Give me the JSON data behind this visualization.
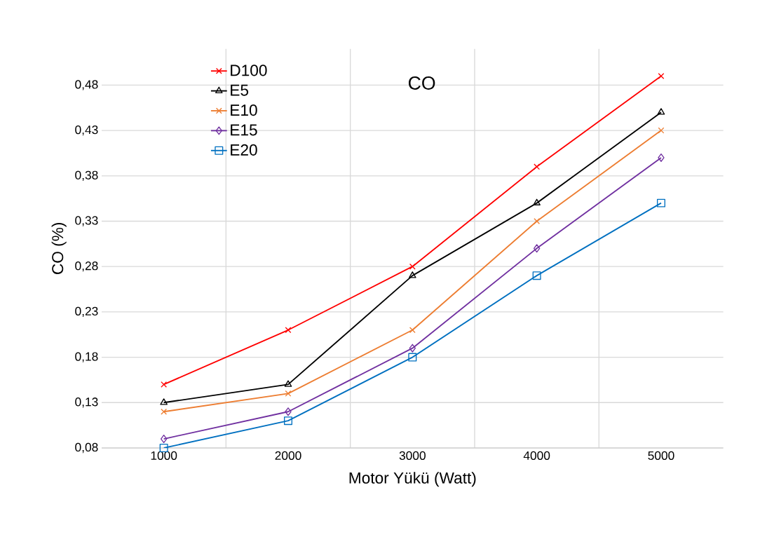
{
  "chart_data": {
    "type": "line",
    "title": "CO",
    "xlabel": "Motor Yükü (Watt)",
    "ylabel": "CO (%)",
    "categories": [
      "1000",
      "2000",
      "3000",
      "4000",
      "5000"
    ],
    "ylim": [
      0.08,
      0.52
    ],
    "yticks": [
      {
        "value": 0.08,
        "label": "0,08"
      },
      {
        "value": 0.13,
        "label": "0,13"
      },
      {
        "value": 0.18,
        "label": "0,18"
      },
      {
        "value": 0.23,
        "label": "0,23"
      },
      {
        "value": 0.28,
        "label": "0,28"
      },
      {
        "value": 0.33,
        "label": "0,33"
      },
      {
        "value": 0.38,
        "label": "0,38"
      },
      {
        "value": 0.43,
        "label": "0,43"
      },
      {
        "value": 0.48,
        "label": "0,48"
      }
    ],
    "grid": true,
    "legend": "top left",
    "series": [
      {
        "name": "D100",
        "color": "#ff0000",
        "marker": "cross",
        "values": [
          0.15,
          0.21,
          0.28,
          0.39,
          0.49
        ]
      },
      {
        "name": "E5",
        "color": "#000000",
        "marker": "triangle",
        "values": [
          0.13,
          0.15,
          0.27,
          0.35,
          0.45
        ]
      },
      {
        "name": "E10",
        "color": "#ed7d31",
        "marker": "cross",
        "values": [
          0.12,
          0.14,
          0.21,
          0.33,
          0.43
        ]
      },
      {
        "name": "E15",
        "color": "#7030a0",
        "marker": "diamond",
        "values": [
          0.09,
          0.12,
          0.19,
          0.3,
          0.4
        ]
      },
      {
        "name": "E20",
        "color": "#0070c0",
        "marker": "square",
        "values": [
          0.08,
          0.11,
          0.18,
          0.27,
          0.35
        ]
      }
    ]
  }
}
